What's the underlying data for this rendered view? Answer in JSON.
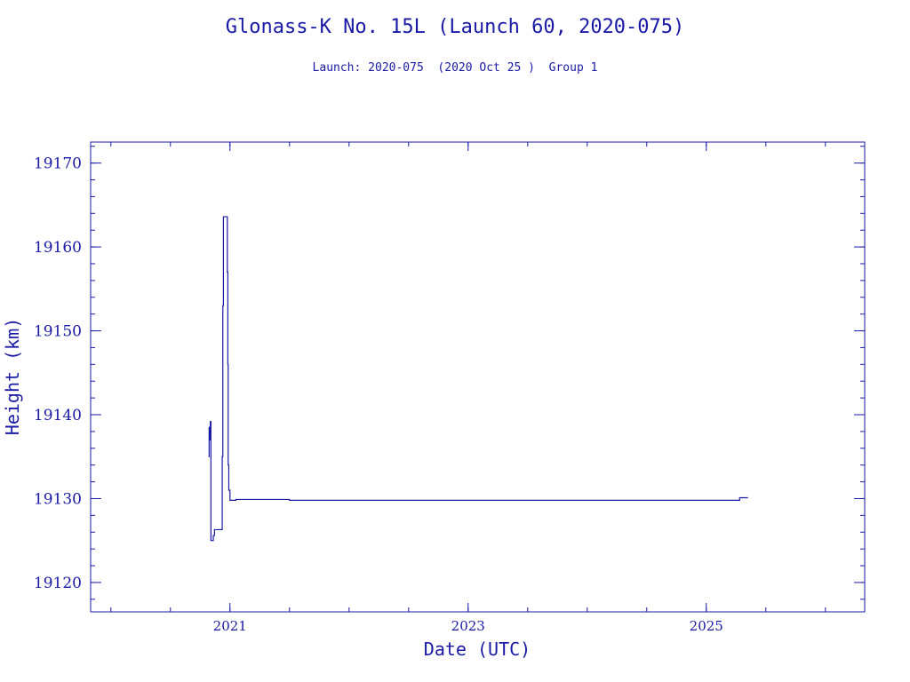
{
  "chart_data": {
    "type": "line",
    "title": "Glonass-K No. 15L (Launch 60, 2020-075)",
    "subtitle": "Launch: 2020-075  (2020 Oct 25 )  Group 1",
    "xlabel": "Date (UTC)",
    "ylabel": "Height (km)",
    "xlim": [
      2019.83,
      2026.33
    ],
    "ylim": [
      19116.5,
      19172.5
    ],
    "x_ticks": [
      {
        "value": 2021,
        "label": "2021"
      },
      {
        "value": 2023,
        "label": "2023"
      },
      {
        "value": 2025,
        "label": "2025"
      }
    ],
    "x_minor_step": 0.5,
    "y_ticks": [
      {
        "value": 19120,
        "label": "19120"
      },
      {
        "value": 19130,
        "label": "19130"
      },
      {
        "value": 19140,
        "label": "19140"
      },
      {
        "value": 19150,
        "label": "19150"
      },
      {
        "value": 19160,
        "label": "19160"
      },
      {
        "value": 19170,
        "label": "19170"
      }
    ],
    "y_minor_step": 2,
    "line_color": "#1a1aa6",
    "series": [
      {
        "step": true,
        "points": [
          [
            2020.82,
            19135.0
          ],
          [
            2020.825,
            19138.5
          ],
          [
            2020.83,
            19137.0
          ],
          [
            2020.835,
            19139.2
          ],
          [
            2020.84,
            19125.0
          ],
          [
            2020.86,
            19125.6
          ],
          [
            2020.87,
            19126.3
          ],
          [
            2020.93,
            19126.3
          ],
          [
            2020.935,
            19135.0
          ],
          [
            2020.94,
            19153.0
          ],
          [
            2020.945,
            19163.6
          ],
          [
            2020.975,
            19163.6
          ],
          [
            2020.978,
            19157.0
          ],
          [
            2020.982,
            19146.0
          ],
          [
            2020.985,
            19134.0
          ],
          [
            2020.99,
            19131.0
          ],
          [
            2021.0,
            19129.8
          ],
          [
            2021.05,
            19129.9
          ],
          [
            2021.5,
            19129.8
          ],
          [
            2023.0,
            19129.8
          ],
          [
            2025.25,
            19129.8
          ],
          [
            2025.28,
            19130.1
          ],
          [
            2025.35,
            19130.1
          ]
        ]
      }
    ]
  }
}
